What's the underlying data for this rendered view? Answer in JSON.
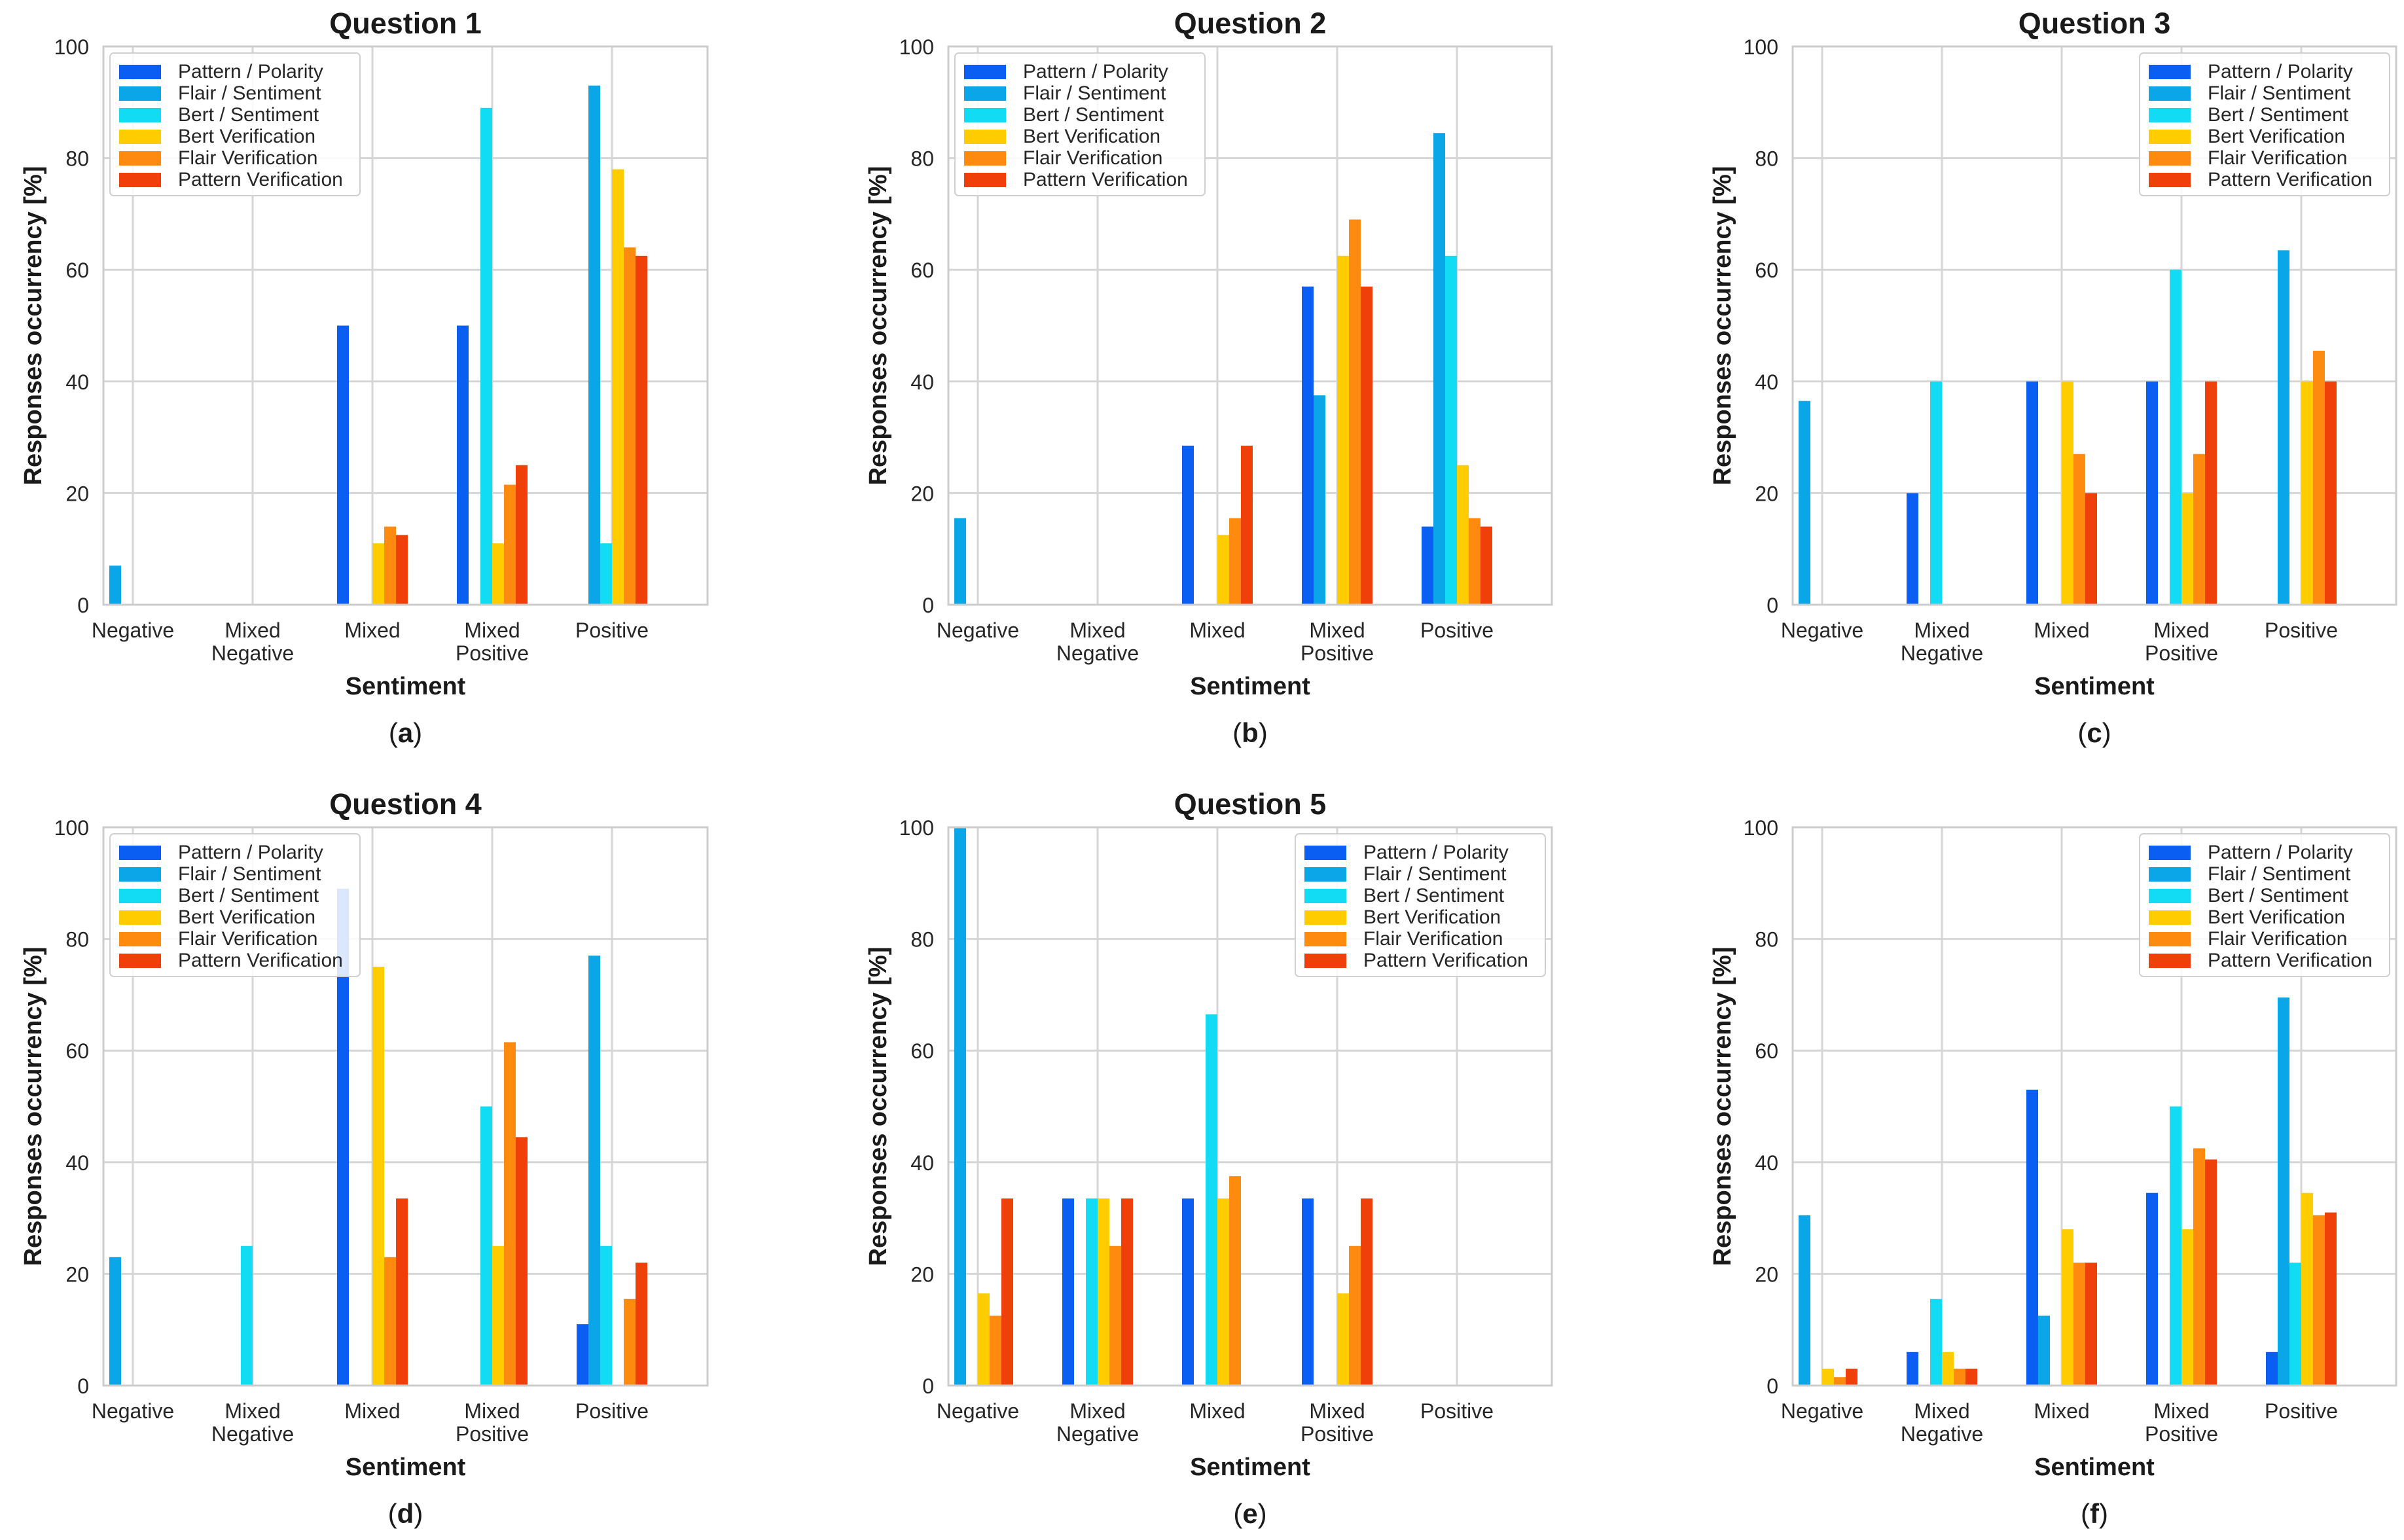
{
  "figure": {
    "series_names": [
      "Pattern / Polarity",
      "Flair / Sentiment",
      "Bert / Sentiment",
      "Bert Verification",
      "Flair Verification",
      "Pattern Verification"
    ],
    "series_colors": [
      "#0a5ff2",
      "#0aa6e8",
      "#12dcf4",
      "#ffcc00",
      "#ff8a10",
      "#f0400a"
    ],
    "category_lines": [
      [
        "Negative"
      ],
      [
        "Mixed",
        "Negative"
      ],
      [
        "Mixed"
      ],
      [
        "Mixed",
        "Positive"
      ],
      [
        "Positive"
      ]
    ],
    "y_ticks": [
      "0",
      "20",
      "40",
      "60",
      "80",
      "100"
    ],
    "xlabel": "Sentiment",
    "ylabel": "Responses occurrency [%]"
  },
  "chart_data": [
    {
      "type": "bar",
      "panel_label": "a",
      "title": "Question 1",
      "categories": [
        "Negative",
        "Mixed Negative",
        "Mixed",
        "Mixed Positive",
        "Positive"
      ],
      "xlabel": "Sentiment",
      "ylabel": "Responses occurrency [%]",
      "ylim": [
        0,
        100
      ],
      "grid": true,
      "legend": "top-left",
      "series": [
        {
          "name": "Pattern / Polarity",
          "values": [
            0,
            0,
            50,
            50,
            0
          ]
        },
        {
          "name": "Flair / Sentiment",
          "values": [
            7,
            0,
            0,
            0,
            93
          ]
        },
        {
          "name": "Bert / Sentiment",
          "values": [
            0,
            0,
            0,
            89,
            11
          ]
        },
        {
          "name": "Bert Verification",
          "values": [
            0,
            0,
            11,
            11,
            78
          ]
        },
        {
          "name": "Flair Verification",
          "values": [
            0,
            0,
            14,
            21.5,
            64
          ]
        },
        {
          "name": "Pattern Verification",
          "values": [
            0,
            0,
            12.5,
            25,
            62.5
          ]
        }
      ]
    },
    {
      "type": "bar",
      "panel_label": "b",
      "title": "Question 2",
      "categories": [
        "Negative",
        "Mixed Negative",
        "Mixed",
        "Mixed Positive",
        "Positive"
      ],
      "xlabel": "Sentiment",
      "ylabel": "Responses occurrency [%]",
      "ylim": [
        0,
        100
      ],
      "grid": true,
      "legend": "top-left",
      "series": [
        {
          "name": "Pattern / Polarity",
          "values": [
            0,
            0,
            28.5,
            57,
            14
          ]
        },
        {
          "name": "Flair / Sentiment",
          "values": [
            15.5,
            0,
            0,
            37.5,
            84.5
          ]
        },
        {
          "name": "Bert / Sentiment",
          "values": [
            0,
            0,
            0,
            0,
            62.5
          ]
        },
        {
          "name": "Bert Verification",
          "values": [
            0,
            0,
            12.5,
            62.5,
            25
          ]
        },
        {
          "name": "Flair Verification",
          "values": [
            0,
            0,
            15.5,
            69,
            15.5
          ]
        },
        {
          "name": "Pattern Verification",
          "values": [
            0,
            0,
            28.5,
            57,
            14
          ]
        }
      ]
    },
    {
      "type": "bar",
      "panel_label": "c",
      "title": "Question 3",
      "categories": [
        "Negative",
        "Mixed Negative",
        "Mixed",
        "Mixed Positive",
        "Positive"
      ],
      "xlabel": "Sentiment",
      "ylabel": "Responses occurrency [%]",
      "ylim": [
        0,
        100
      ],
      "grid": true,
      "legend": "top-right",
      "series": [
        {
          "name": "Pattern / Polarity",
          "values": [
            0,
            20,
            40,
            40,
            0
          ]
        },
        {
          "name": "Flair / Sentiment",
          "values": [
            36.5,
            0,
            0,
            0,
            63.5
          ]
        },
        {
          "name": "Bert / Sentiment",
          "values": [
            0,
            40,
            0,
            60,
            0
          ]
        },
        {
          "name": "Bert Verification",
          "values": [
            0,
            0,
            40,
            20,
            40
          ]
        },
        {
          "name": "Flair Verification",
          "values": [
            0,
            0,
            27,
            27,
            45.5
          ]
        },
        {
          "name": "Pattern Verification",
          "values": [
            0,
            0,
            20,
            40,
            40
          ]
        }
      ]
    },
    {
      "type": "bar",
      "panel_label": "d",
      "title": "Question 4",
      "categories": [
        "Negative",
        "Mixed Negative",
        "Mixed",
        "Mixed Positive",
        "Positive"
      ],
      "xlabel": "Sentiment",
      "ylabel": "Responses occurrency [%]",
      "ylim": [
        0,
        100
      ],
      "grid": true,
      "legend": "top-left",
      "series": [
        {
          "name": "Pattern / Polarity",
          "values": [
            0,
            0,
            89,
            0,
            11
          ]
        },
        {
          "name": "Flair / Sentiment",
          "values": [
            23,
            0,
            0,
            0,
            77
          ]
        },
        {
          "name": "Bert / Sentiment",
          "values": [
            0,
            25,
            0,
            50,
            25
          ]
        },
        {
          "name": "Bert Verification",
          "values": [
            0,
            0,
            75,
            25,
            0
          ]
        },
        {
          "name": "Flair Verification",
          "values": [
            0,
            0,
            23,
            61.5,
            15.5
          ]
        },
        {
          "name": "Pattern Verification",
          "values": [
            0,
            0,
            33.5,
            44.5,
            22
          ]
        }
      ]
    },
    {
      "type": "bar",
      "panel_label": "e",
      "title": "Question 5",
      "categories": [
        "Negative",
        "Mixed Negative",
        "Mixed",
        "Mixed Positive",
        "Positive"
      ],
      "xlabel": "Sentiment",
      "ylabel": "Responses occurrency [%]",
      "ylim": [
        0,
        100
      ],
      "grid": true,
      "legend": "top-right",
      "series": [
        {
          "name": "Pattern / Polarity",
          "values": [
            0,
            33.5,
            33.5,
            33.5,
            0
          ]
        },
        {
          "name": "Flair / Sentiment",
          "values": [
            100,
            0,
            0,
            0,
            0
          ]
        },
        {
          "name": "Bert / Sentiment",
          "values": [
            0,
            33.5,
            66.5,
            0,
            0
          ]
        },
        {
          "name": "Bert Verification",
          "values": [
            16.5,
            33.5,
            33.5,
            16.5,
            0
          ]
        },
        {
          "name": "Flair Verification",
          "values": [
            12.5,
            25,
            37.5,
            25,
            0
          ]
        },
        {
          "name": "Pattern Verification",
          "values": [
            33.5,
            33.5,
            0,
            33.5,
            0
          ]
        }
      ]
    },
    {
      "type": "bar",
      "panel_label": "f",
      "title": "",
      "categories": [
        "Negative",
        "Mixed Negative",
        "Mixed",
        "Mixed Positive",
        "Positive"
      ],
      "xlabel": "Sentiment",
      "ylabel": "Responses occurrency [%]",
      "ylim": [
        0,
        100
      ],
      "grid": true,
      "legend": "top-right",
      "series": [
        {
          "name": "Pattern / Polarity",
          "values": [
            0,
            6,
            53,
            34.5,
            6
          ]
        },
        {
          "name": "Flair / Sentiment",
          "values": [
            30.5,
            0,
            12.5,
            0,
            69.5
          ]
        },
        {
          "name": "Bert / Sentiment",
          "values": [
            0,
            15.5,
            0,
            50,
            22
          ]
        },
        {
          "name": "Bert Verification",
          "values": [
            3,
            6,
            28,
            28,
            34.5
          ]
        },
        {
          "name": "Flair Verification",
          "values": [
            1.5,
            3,
            22,
            42.5,
            30.5
          ]
        },
        {
          "name": "Pattern Verification",
          "values": [
            3,
            3,
            22,
            40.5,
            31
          ]
        }
      ]
    }
  ]
}
